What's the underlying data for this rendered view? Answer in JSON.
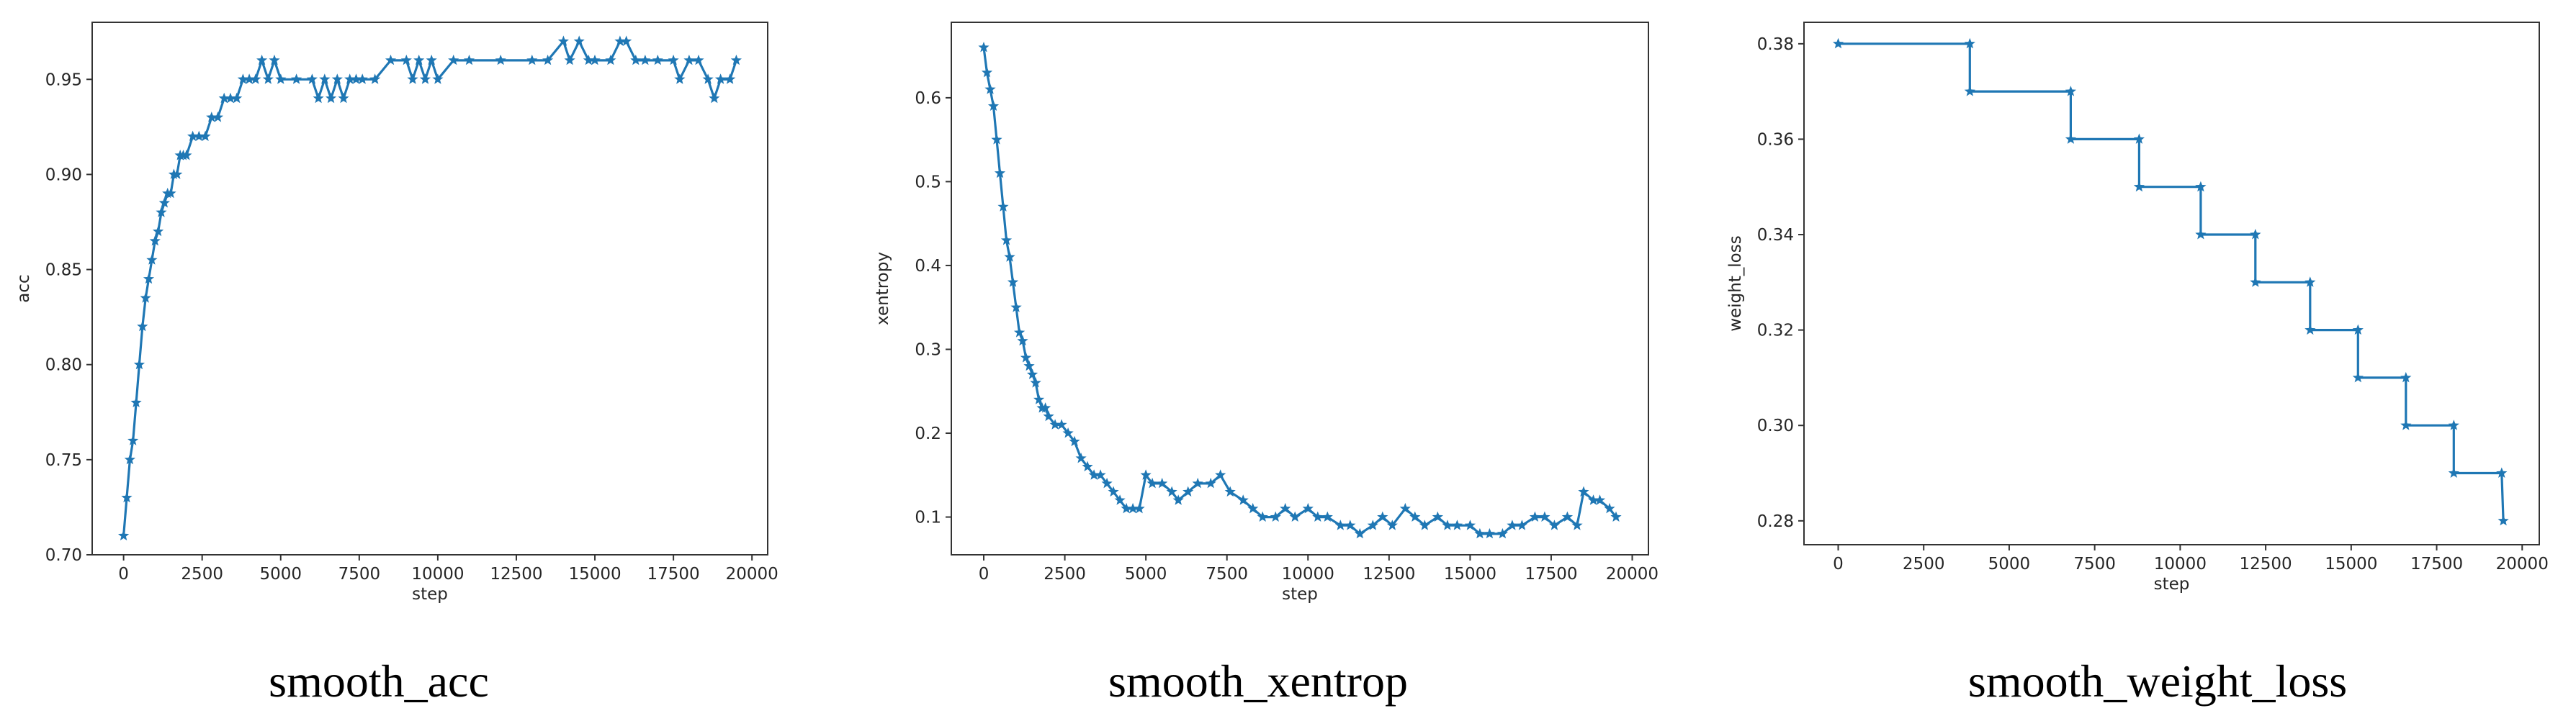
{
  "colors": {
    "series": "#1f77b4",
    "axis": "#333333",
    "text": "#262626"
  },
  "chart_data": [
    {
      "type": "line",
      "caption": "smooth_acc",
      "xlabel": "step",
      "ylabel": "acc",
      "marker": "star",
      "xlim": [
        -1000,
        20500
      ],
      "ylim": [
        0.7,
        0.98
      ],
      "xticks": [
        0,
        2500,
        5000,
        7500,
        10000,
        12500,
        15000,
        17500,
        20000
      ],
      "yticks": [
        0.7,
        0.75,
        0.8,
        0.85,
        0.9,
        0.95
      ],
      "ytick_labels": [
        "0.70",
        "0.75",
        "0.80",
        "0.85",
        "0.90",
        "0.95"
      ],
      "series": [
        {
          "x": [
            0,
            100,
            200,
            300,
            400,
            500,
            600,
            700,
            800,
            900,
            1000,
            1100,
            1200,
            1300,
            1400,
            1500,
            1600,
            1700,
            1800,
            1900,
            2000,
            2200,
            2400,
            2600,
            2800,
            3000,
            3200,
            3400,
            3600,
            3800,
            4000,
            4200,
            4400,
            4600,
            4800,
            5000,
            5500,
            6000,
            6200,
            6400,
            6600,
            6800,
            7000,
            7200,
            7400,
            7600,
            8000,
            8500,
            9000,
            9200,
            9400,
            9600,
            9800,
            10000,
            10500,
            11000,
            12000,
            13000,
            13500,
            14000,
            14200,
            14500,
            14800,
            15000,
            15500,
            15800,
            16000,
            16300,
            16600,
            17000,
            17500,
            17700,
            18000,
            18300,
            18600,
            18800,
            19000,
            19300,
            19500
          ],
          "y": [
            0.71,
            0.73,
            0.75,
            0.76,
            0.78,
            0.8,
            0.82,
            0.835,
            0.845,
            0.855,
            0.865,
            0.87,
            0.88,
            0.885,
            0.89,
            0.89,
            0.9,
            0.9,
            0.91,
            0.91,
            0.91,
            0.92,
            0.92,
            0.92,
            0.93,
            0.93,
            0.94,
            0.94,
            0.94,
            0.95,
            0.95,
            0.95,
            0.96,
            0.95,
            0.96,
            0.95,
            0.95,
            0.95,
            0.94,
            0.95,
            0.94,
            0.95,
            0.94,
            0.95,
            0.95,
            0.95,
            0.95,
            0.96,
            0.96,
            0.95,
            0.96,
            0.95,
            0.96,
            0.95,
            0.96,
            0.96,
            0.96,
            0.96,
            0.96,
            0.97,
            0.96,
            0.97,
            0.96,
            0.96,
            0.96,
            0.97,
            0.97,
            0.96,
            0.96,
            0.96,
            0.96,
            0.95,
            0.96,
            0.96,
            0.95,
            0.94,
            0.95,
            0.95,
            0.96
          ]
        }
      ]
    },
    {
      "type": "line",
      "caption": "smooth_xentrop",
      "xlabel": "step",
      "ylabel": "xentropy",
      "marker": "star",
      "xlim": [
        -1000,
        20500
      ],
      "ylim": [
        0.055,
        0.69
      ],
      "xticks": [
        0,
        2500,
        5000,
        7500,
        10000,
        12500,
        15000,
        17500,
        20000
      ],
      "yticks": [
        0.1,
        0.2,
        0.3,
        0.4,
        0.5,
        0.6
      ],
      "ytick_labels": [
        "0.1",
        "0.2",
        "0.3",
        "0.4",
        "0.5",
        "0.6"
      ],
      "series": [
        {
          "x": [
            0,
            100,
            200,
            300,
            400,
            500,
            600,
            700,
            800,
            900,
            1000,
            1100,
            1200,
            1300,
            1400,
            1500,
            1600,
            1700,
            1800,
            1900,
            2000,
            2200,
            2400,
            2600,
            2800,
            3000,
            3200,
            3400,
            3600,
            3800,
            4000,
            4200,
            4400,
            4600,
            4800,
            5000,
            5200,
            5500,
            5800,
            6000,
            6300,
            6600,
            7000,
            7300,
            7600,
            8000,
            8300,
            8600,
            9000,
            9300,
            9600,
            10000,
            10300,
            10600,
            11000,
            11300,
            11600,
            12000,
            12300,
            12600,
            13000,
            13300,
            13600,
            14000,
            14300,
            14600,
            15000,
            15300,
            15600,
            16000,
            16300,
            16600,
            17000,
            17300,
            17600,
            18000,
            18300,
            18500,
            18800,
            19000,
            19300,
            19500
          ],
          "y": [
            0.66,
            0.63,
            0.61,
            0.59,
            0.55,
            0.51,
            0.47,
            0.43,
            0.41,
            0.38,
            0.35,
            0.32,
            0.31,
            0.29,
            0.28,
            0.27,
            0.26,
            0.24,
            0.23,
            0.23,
            0.22,
            0.21,
            0.21,
            0.2,
            0.19,
            0.17,
            0.16,
            0.15,
            0.15,
            0.14,
            0.13,
            0.12,
            0.11,
            0.11,
            0.11,
            0.15,
            0.14,
            0.14,
            0.13,
            0.12,
            0.13,
            0.14,
            0.14,
            0.15,
            0.13,
            0.12,
            0.11,
            0.1,
            0.1,
            0.11,
            0.1,
            0.11,
            0.1,
            0.1,
            0.09,
            0.09,
            0.08,
            0.09,
            0.1,
            0.09,
            0.11,
            0.1,
            0.09,
            0.1,
            0.09,
            0.09,
            0.09,
            0.08,
            0.08,
            0.08,
            0.09,
            0.09,
            0.1,
            0.1,
            0.09,
            0.1,
            0.09,
            0.13,
            0.12,
            0.12,
            0.11,
            0.1
          ]
        }
      ]
    },
    {
      "type": "line",
      "caption": "smooth_weight_loss",
      "xlabel": "step",
      "ylabel": "weight_loss",
      "marker": "star",
      "xlim": [
        -1000,
        20500
      ],
      "ylim": [
        0.275,
        0.3845
      ],
      "xticks": [
        0,
        2500,
        5000,
        7500,
        10000,
        12500,
        15000,
        17500,
        20000
      ],
      "yticks": [
        0.28,
        0.3,
        0.32,
        0.34,
        0.36,
        0.38
      ],
      "ytick_labels": [
        "0.28",
        "0.30",
        "0.32",
        "0.34",
        "0.36",
        "0.38"
      ],
      "series": [
        {
          "x": [
            0,
            3850,
            3850,
            6800,
            6800,
            8800,
            8800,
            10600,
            10600,
            12200,
            12200,
            13800,
            13800,
            15200,
            15200,
            16600,
            16600,
            18000,
            18000,
            19400,
            19450
          ],
          "y": [
            0.38,
            0.38,
            0.37,
            0.37,
            0.36,
            0.36,
            0.35,
            0.35,
            0.34,
            0.34,
            0.33,
            0.33,
            0.32,
            0.32,
            0.31,
            0.31,
            0.3,
            0.3,
            0.29,
            0.29,
            0.28
          ]
        }
      ]
    }
  ]
}
